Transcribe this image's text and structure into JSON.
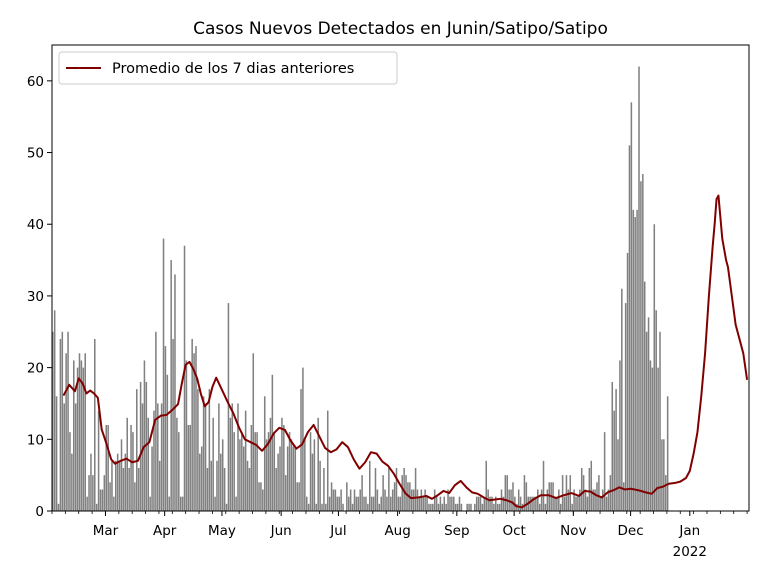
{
  "chart_data": {
    "type": "bar",
    "title": "Casos Nuevos Detectados en Junin/Satipo/Satipo",
    "xlabel": "",
    "ylabel": "",
    "ylim": [
      0,
      65
    ],
    "y_ticks": [
      0,
      10,
      20,
      30,
      40,
      50,
      60
    ],
    "x_range": [
      "2021-02-01",
      "2022-01-31"
    ],
    "x_ticks": [
      {
        "date": "2021-03-01",
        "label": "Mar"
      },
      {
        "date": "2021-04-01",
        "label": "Apr"
      },
      {
        "date": "2021-05-01",
        "label": "May"
      },
      {
        "date": "2021-06-01",
        "label": "Jun"
      },
      {
        "date": "2021-07-01",
        "label": "Jul"
      },
      {
        "date": "2021-08-01",
        "label": "Aug"
      },
      {
        "date": "2021-09-01",
        "label": "Sep"
      },
      {
        "date": "2021-10-01",
        "label": "Oct"
      },
      {
        "date": "2021-11-01",
        "label": "Nov"
      },
      {
        "date": "2021-12-01",
        "label": "Dec"
      },
      {
        "date": "2022-01-01",
        "label": "Jan"
      }
    ],
    "x_secondary_label": "2022",
    "grid": false,
    "legend": "upper-left",
    "colors": {
      "bars": "#808080",
      "line": "#800000"
    },
    "start_date": "2021-02-01",
    "bar_values": [
      25,
      28,
      16,
      1,
      24,
      25,
      15,
      22,
      25,
      11,
      8,
      21,
      15,
      20,
      22,
      21,
      20,
      22,
      2,
      5,
      8,
      5,
      24,
      1,
      14,
      3,
      3,
      5,
      12,
      12,
      4,
      7,
      2,
      7,
      8,
      7,
      10,
      6,
      8,
      13,
      6,
      12,
      11,
      4,
      17,
      6,
      18,
      15,
      21,
      18,
      13,
      2,
      9,
      14,
      25,
      15,
      7,
      15,
      38,
      23,
      19,
      2,
      35,
      24,
      33,
      13,
      11,
      2,
      2,
      37,
      21,
      12,
      12,
      24,
      22,
      23,
      17,
      8,
      9,
      16,
      15,
      6,
      17,
      7,
      13,
      2,
      7,
      15,
      8,
      10,
      6,
      1,
      29,
      13,
      15,
      11,
      2,
      15,
      10,
      11,
      9,
      14,
      7,
      6,
      12,
      22,
      11,
      11,
      4,
      4,
      3,
      16,
      10,
      11,
      13,
      19,
      11,
      6,
      8,
      9,
      13,
      12,
      5,
      9,
      11,
      10,
      9,
      9,
      4,
      4,
      17,
      20,
      10,
      2,
      1,
      11,
      8,
      10,
      1,
      13,
      7,
      1,
      6,
      1,
      14,
      2,
      4,
      3,
      3,
      2,
      2,
      3,
      1,
      0,
      4,
      2,
      3,
      1,
      3,
      2,
      2,
      3,
      5,
      2,
      2,
      1,
      7,
      2,
      2,
      6,
      3,
      1,
      2,
      5,
      3,
      2,
      6,
      2,
      3,
      4,
      6,
      2,
      2,
      5,
      6,
      5,
      4,
      4,
      3,
      3,
      6,
      3,
      2,
      3,
      2,
      3,
      2,
      1,
      1,
      1,
      3,
      2,
      1,
      2,
      1,
      2,
      1,
      3,
      2,
      2,
      2,
      1,
      1,
      2,
      1,
      0,
      0,
      1,
      1,
      1,
      0,
      1,
      2,
      2,
      2,
      1,
      2,
      7,
      3,
      2,
      2,
      1,
      2,
      1,
      1,
      3,
      2,
      5,
      5,
      3,
      3,
      4,
      2,
      1,
      3,
      2,
      1,
      5,
      4,
      2,
      2,
      2,
      2,
      2,
      3,
      1,
      3,
      7,
      1,
      3,
      4,
      4,
      4,
      2,
      2,
      3,
      1,
      5,
      2,
      5,
      3,
      5,
      1,
      3,
      2,
      2,
      3,
      6,
      5,
      3,
      2,
      6,
      7,
      3,
      3,
      4,
      5,
      2,
      3,
      11,
      2,
      3,
      5,
      18,
      14,
      17,
      10,
      21,
      31,
      4,
      29,
      36,
      51,
      57,
      42,
      41,
      42,
      62,
      46,
      47,
      32,
      25,
      27,
      21,
      20,
      40,
      28,
      20,
      25,
      10,
      10,
      5,
      16
    ],
    "series": [
      {
        "name": "Promedio de los 7 dias anteriores",
        "points": [
          [
            "2021-02-07",
            16.1
          ],
          [
            "2021-02-10",
            17.6
          ],
          [
            "2021-02-13",
            16.7
          ],
          [
            "2021-02-15",
            18.5
          ],
          [
            "2021-02-17",
            17.8
          ],
          [
            "2021-02-19",
            16.4
          ],
          [
            "2021-02-21",
            16.8
          ],
          [
            "2021-02-23",
            16.4
          ],
          [
            "2021-02-25",
            15.8
          ],
          [
            "2021-02-27",
            11.4
          ],
          [
            "2021-03-01",
            9.8
          ],
          [
            "2021-03-04",
            7.2
          ],
          [
            "2021-03-06",
            6.6
          ],
          [
            "2021-03-09",
            7.0
          ],
          [
            "2021-03-12",
            7.3
          ],
          [
            "2021-03-15",
            6.8
          ],
          [
            "2021-03-18",
            7.0
          ],
          [
            "2021-03-21",
            8.9
          ],
          [
            "2021-03-24",
            9.6
          ],
          [
            "2021-03-27",
            12.7
          ],
          [
            "2021-03-30",
            13.3
          ],
          [
            "2021-04-02",
            13.4
          ],
          [
            "2021-04-05",
            14.1
          ],
          [
            "2021-04-08",
            14.9
          ],
          [
            "2021-04-10",
            17.8
          ],
          [
            "2021-04-12",
            20.4
          ],
          [
            "2021-04-14",
            20.8
          ],
          [
            "2021-04-16",
            19.8
          ],
          [
            "2021-04-18",
            18.5
          ],
          [
            "2021-04-20",
            16.3
          ],
          [
            "2021-04-22",
            14.6
          ],
          [
            "2021-04-24",
            15.2
          ],
          [
            "2021-04-26",
            17.3
          ],
          [
            "2021-04-28",
            18.6
          ],
          [
            "2021-05-01",
            16.9
          ],
          [
            "2021-05-04",
            15.2
          ],
          [
            "2021-05-07",
            13.6
          ],
          [
            "2021-05-10",
            11.6
          ],
          [
            "2021-05-13",
            10.0
          ],
          [
            "2021-05-16",
            9.6
          ],
          [
            "2021-05-19",
            9.2
          ],
          [
            "2021-05-22",
            8.4
          ],
          [
            "2021-05-25",
            9.3
          ],
          [
            "2021-05-28",
            10.8
          ],
          [
            "2021-05-31",
            11.6
          ],
          [
            "2021-06-03",
            11.3
          ],
          [
            "2021-06-06",
            9.8
          ],
          [
            "2021-06-09",
            8.7
          ],
          [
            "2021-06-12",
            9.3
          ],
          [
            "2021-06-15",
            11.0
          ],
          [
            "2021-06-18",
            12.0
          ],
          [
            "2021-06-21",
            10.4
          ],
          [
            "2021-06-24",
            8.8
          ],
          [
            "2021-06-27",
            8.2
          ],
          [
            "2021-06-30",
            8.6
          ],
          [
            "2021-07-03",
            9.6
          ],
          [
            "2021-07-06",
            8.9
          ],
          [
            "2021-07-09",
            7.2
          ],
          [
            "2021-07-12",
            5.9
          ],
          [
            "2021-07-15",
            6.8
          ],
          [
            "2021-07-18",
            8.2
          ],
          [
            "2021-07-21",
            8.0
          ],
          [
            "2021-07-24",
            6.9
          ],
          [
            "2021-07-27",
            6.3
          ],
          [
            "2021-07-30",
            5.2
          ],
          [
            "2021-08-02",
            3.8
          ],
          [
            "2021-08-05",
            2.5
          ],
          [
            "2021-08-08",
            1.8
          ],
          [
            "2021-08-12",
            1.9
          ],
          [
            "2021-08-16",
            2.1
          ],
          [
            "2021-08-19",
            1.7
          ],
          [
            "2021-08-22",
            2.2
          ],
          [
            "2021-08-25",
            2.8
          ],
          [
            "2021-08-28",
            2.5
          ],
          [
            "2021-08-31",
            3.6
          ],
          [
            "2021-09-03",
            4.2
          ],
          [
            "2021-09-06",
            3.3
          ],
          [
            "2021-09-09",
            2.6
          ],
          [
            "2021-09-12",
            2.4
          ],
          [
            "2021-09-15",
            1.9
          ],
          [
            "2021-09-18",
            1.5
          ],
          [
            "2021-09-21",
            1.6
          ],
          [
            "2021-09-24",
            1.7
          ],
          [
            "2021-09-27",
            1.5
          ],
          [
            "2021-09-30",
            1.2
          ],
          [
            "2021-10-02",
            0.7
          ],
          [
            "2021-10-05",
            0.5
          ],
          [
            "2021-10-08",
            1.0
          ],
          [
            "2021-10-11",
            1.6
          ],
          [
            "2021-10-15",
            2.2
          ],
          [
            "2021-10-19",
            2.2
          ],
          [
            "2021-10-23",
            1.8
          ],
          [
            "2021-10-27",
            2.2
          ],
          [
            "2021-10-31",
            2.5
          ],
          [
            "2021-11-04",
            2.1
          ],
          [
            "2021-11-07",
            2.8
          ],
          [
            "2021-11-10",
            2.7
          ],
          [
            "2021-11-13",
            2.2
          ],
          [
            "2021-11-16",
            1.9
          ],
          [
            "2021-11-19",
            2.6
          ],
          [
            "2021-11-22",
            2.9
          ],
          [
            "2021-11-25",
            3.3
          ],
          [
            "2021-11-28",
            3.0
          ],
          [
            "2021-12-01",
            3.1
          ],
          [
            "2021-12-05",
            2.9
          ],
          [
            "2021-12-09",
            2.6
          ],
          [
            "2021-12-12",
            2.4
          ],
          [
            "2021-12-15",
            3.2
          ],
          [
            "2021-12-18",
            3.4
          ],
          [
            "2021-12-21",
            3.8
          ],
          [
            "2021-12-24",
            3.9
          ],
          [
            "2021-12-27",
            4.1
          ],
          [
            "2021-12-30",
            4.6
          ],
          [
            "2022-01-01",
            5.6
          ],
          [
            "2022-01-03",
            8.0
          ],
          [
            "2022-01-05",
            11.0
          ],
          [
            "2022-01-07",
            16.0
          ],
          [
            "2022-01-09",
            22.0
          ],
          [
            "2022-01-11",
            30.0
          ],
          [
            "2022-01-13",
            37.0
          ],
          [
            "2022-01-14",
            40.0
          ],
          [
            "2022-01-15",
            43.5
          ],
          [
            "2022-01-16",
            44.0
          ],
          [
            "2022-01-17",
            41.0
          ],
          [
            "2022-01-18",
            38.0
          ],
          [
            "2022-01-20",
            35.0
          ],
          [
            "2022-01-21",
            34.0
          ],
          [
            "2022-01-23",
            30.0
          ],
          [
            "2022-01-25",
            26.0
          ],
          [
            "2022-01-27",
            24.0
          ],
          [
            "2022-01-29",
            22.0
          ],
          [
            "2022-01-31",
            18.3
          ]
        ]
      }
    ]
  }
}
